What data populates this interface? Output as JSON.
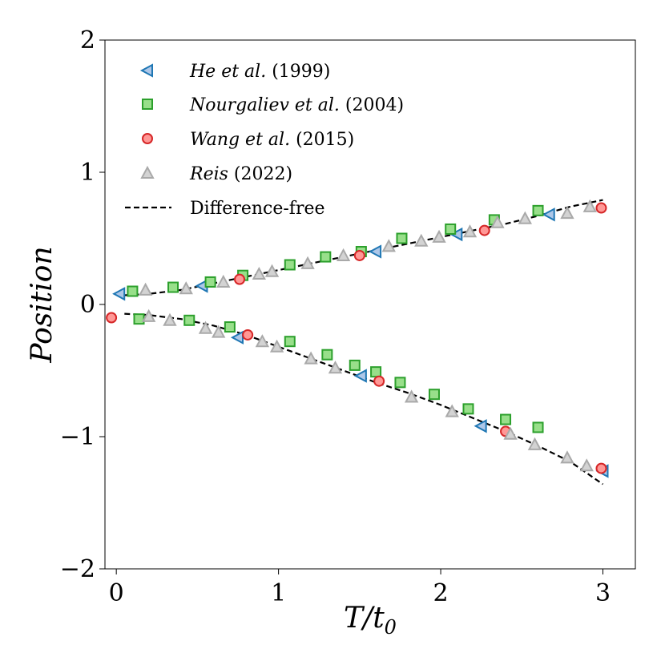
{
  "chart_data": {
    "type": "scatter",
    "title": "",
    "xlabel": "T/t",
    "xlabel_sub": "0",
    "ylabel": "Position",
    "xlim": [
      -0.07,
      3.2
    ],
    "ylim": [
      -2,
      2
    ],
    "xticks": [
      0,
      1,
      2,
      3
    ],
    "xtick_labels": [
      "0",
      "1",
      "2",
      "3"
    ],
    "yticks": [
      -2,
      -1,
      0,
      1,
      2
    ],
    "ytick_labels": [
      "−2",
      "−1",
      "0",
      "1",
      "2"
    ],
    "grid": false,
    "legend_position": "top-left",
    "series": [
      {
        "name": "He et al.",
        "legend_italic": "He et al.",
        "legend_year": "(1999)",
        "marker": "triangle-left",
        "color": "#1f77b4",
        "fill": "#aec7e8",
        "upper": {
          "x": [
            0.02,
            0.53,
            1.6,
            2.1,
            2.67
          ],
          "y": [
            0.08,
            0.14,
            0.4,
            0.53,
            0.68
          ]
        },
        "lower": {
          "x": [
            0.75,
            1.51,
            2.25,
            3.0
          ],
          "y": [
            -0.25,
            -0.54,
            -0.92,
            -1.26
          ]
        }
      },
      {
        "name": "Nourgaliev et al.",
        "legend_italic": "Nourgaliev et al.",
        "legend_year": "(2004)",
        "marker": "square",
        "color": "#2ca02c",
        "fill": "#98df8a",
        "upper": {
          "x": [
            0.1,
            0.35,
            0.58,
            0.78,
            1.07,
            1.29,
            1.51,
            1.76,
            2.06,
            2.33,
            2.6
          ],
          "y": [
            0.1,
            0.13,
            0.17,
            0.22,
            0.3,
            0.36,
            0.4,
            0.5,
            0.57,
            0.64,
            0.71
          ]
        },
        "lower": {
          "x": [
            0.14,
            0.45,
            0.7,
            1.07,
            1.3,
            1.47,
            1.6,
            1.75,
            1.96,
            2.17,
            2.4,
            2.6
          ],
          "y": [
            -0.11,
            -0.12,
            -0.17,
            -0.28,
            -0.38,
            -0.46,
            -0.51,
            -0.59,
            -0.68,
            -0.79,
            -0.87,
            -0.93
          ]
        }
      },
      {
        "name": "Wang et al.",
        "legend_italic": "Wang et al.",
        "legend_year": "(2015)",
        "marker": "circle",
        "color": "#d62728",
        "fill": "#ff9896",
        "upper": {
          "x": [
            0.76,
            1.5,
            2.27,
            2.99
          ],
          "y": [
            0.19,
            0.37,
            0.56,
            0.73
          ]
        },
        "lower": {
          "x": [
            -0.03,
            0.81,
            1.62,
            2.4,
            2.99
          ],
          "y": [
            -0.1,
            -0.23,
            -0.58,
            -0.96,
            -1.24
          ]
        }
      },
      {
        "name": "Reis",
        "legend_italic": "Reis",
        "legend_year": "(2022)",
        "marker": "triangle-up",
        "color": "#a9a9a9",
        "fill": "#d3d3d3",
        "upper": {
          "x": [
            0.18,
            0.43,
            0.66,
            0.88,
            0.96,
            1.18,
            1.4,
            1.68,
            1.88,
            1.99,
            2.18,
            2.35,
            2.52,
            2.78,
            2.92
          ],
          "y": [
            0.11,
            0.12,
            0.17,
            0.23,
            0.25,
            0.31,
            0.37,
            0.44,
            0.48,
            0.51,
            0.55,
            0.62,
            0.65,
            0.69,
            0.74
          ]
        },
        "lower": {
          "x": [
            0.2,
            0.33,
            0.55,
            0.63,
            0.9,
            0.99,
            1.2,
            1.35,
            1.82,
            2.07,
            2.43,
            2.58,
            2.78,
            2.9
          ],
          "y": [
            -0.09,
            -0.12,
            -0.18,
            -0.21,
            -0.28,
            -0.32,
            -0.41,
            -0.48,
            -0.7,
            -0.81,
            -0.98,
            -1.06,
            -1.16,
            -1.22
          ]
        }
      },
      {
        "name": "Difference-free",
        "legend_italic": "",
        "legend_year": "Difference-free",
        "marker": "dashed-line",
        "color": "#000000",
        "upper": {
          "x": [
            0.05,
            0.2,
            0.4,
            0.6,
            0.8,
            1.0,
            1.2,
            1.4,
            1.6,
            1.8,
            2.0,
            2.2,
            2.4,
            2.6,
            2.8,
            3.0
          ],
          "y": [
            0.07,
            0.08,
            0.11,
            0.16,
            0.21,
            0.26,
            0.31,
            0.36,
            0.41,
            0.46,
            0.51,
            0.56,
            0.61,
            0.67,
            0.74,
            0.79
          ]
        },
        "lower": {
          "x": [
            0.05,
            0.2,
            0.4,
            0.6,
            0.8,
            1.0,
            1.2,
            1.4,
            1.6,
            1.8,
            2.0,
            2.2,
            2.4,
            2.6,
            2.8,
            3.0
          ],
          "y": [
            -0.07,
            -0.08,
            -0.11,
            -0.16,
            -0.23,
            -0.32,
            -0.41,
            -0.5,
            -0.59,
            -0.67,
            -0.76,
            -0.86,
            -0.96,
            -1.07,
            -1.19,
            -1.36
          ]
        }
      }
    ]
  }
}
